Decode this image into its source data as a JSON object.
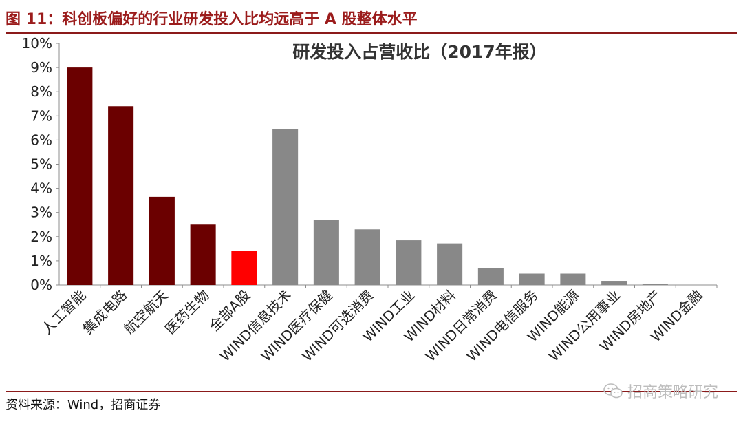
{
  "header": {
    "title": "图 11：科创板偏好的行业研发投入比均远高于 A 股整体水平"
  },
  "footer": {
    "source": "资料来源：Wind，招商证券"
  },
  "watermark": {
    "text": "招商策略研究",
    "icon": "wechat-icon"
  },
  "chart_data": {
    "type": "bar",
    "title": "研发投入占营收比（2017年报）",
    "xlabel": "",
    "ylabel": "",
    "ylim": [
      0,
      10
    ],
    "y_ticks": [
      "0%",
      "1%",
      "2%",
      "3%",
      "4%",
      "5%",
      "6%",
      "7%",
      "8%",
      "9%",
      "10%"
    ],
    "grid": false,
    "categories": [
      "人工智能",
      "集成电路",
      "航空航天",
      "医药生物",
      "全部A股",
      "WIND信息技术",
      "WIND医疗保健",
      "WIND可选消费",
      "WIND工业",
      "WIND材料",
      "WIND日常消费",
      "WIND电信服务",
      "WIND能源",
      "WIND公用事业",
      "WIND房地产",
      "WIND金融"
    ],
    "values": [
      9.0,
      7.4,
      3.65,
      2.5,
      1.42,
      6.45,
      2.7,
      2.3,
      1.85,
      1.72,
      0.7,
      0.47,
      0.47,
      0.17,
      0.04,
      0.0
    ],
    "colors": [
      "#6b0000",
      "#6b0000",
      "#6b0000",
      "#6b0000",
      "#ff0000",
      "#888888",
      "#888888",
      "#888888",
      "#888888",
      "#888888",
      "#888888",
      "#888888",
      "#888888",
      "#888888",
      "#888888",
      "#888888"
    ]
  }
}
